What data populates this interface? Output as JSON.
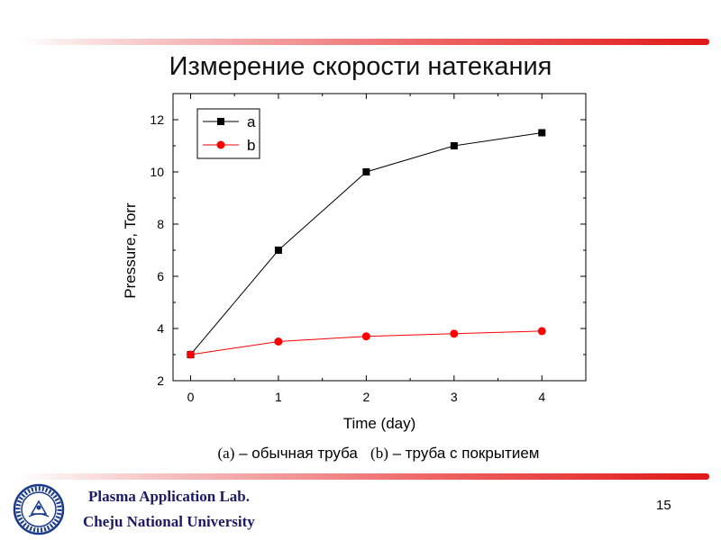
{
  "slide": {
    "title": "Измерение скорости натекания",
    "caption_a_marker": "(a)",
    "caption_a_text": " – обычная труба",
    "caption_b_marker": "(b)",
    "caption_b_text": " – труба с покрытием",
    "lab_name": "Plasma Application Lab.",
    "university": "Cheju National University",
    "page_number": "15",
    "accent_color": "#e01818"
  },
  "chart_data": {
    "type": "line",
    "xlabel": "Time (day)",
    "ylabel": "Pressure, Torr",
    "x": [
      0,
      1,
      2,
      3,
      4
    ],
    "xlim": [
      -0.2,
      4.5
    ],
    "ylim": [
      2,
      13
    ],
    "xticks": [
      0,
      1,
      2,
      3,
      4
    ],
    "yticks": [
      2,
      4,
      6,
      8,
      10,
      12
    ],
    "legend_position": "top-left",
    "grid": false,
    "series": [
      {
        "name": "a",
        "values": [
          3,
          7,
          10,
          11,
          11.5
        ],
        "color": "#000000",
        "marker": "square"
      },
      {
        "name": "b",
        "values": [
          3,
          3.5,
          3.7,
          3.8,
          3.9
        ],
        "color": "#ff0000",
        "marker": "circle"
      }
    ]
  }
}
